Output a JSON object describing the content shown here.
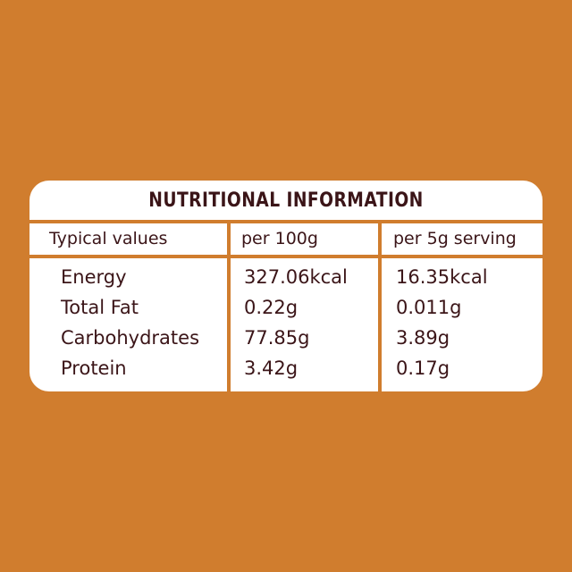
{
  "title": "NUTRITIONAL INFORMATION",
  "headers": [
    "Typical values",
    "per 100g",
    "per 5g serving"
  ],
  "rows": [
    {
      "name": "Energy",
      "per100": "327.06kcal",
      "serving": "16.35kcal"
    },
    {
      "name": "Total Fat",
      "per100": "0.22g",
      "serving": "0.011g"
    },
    {
      "name": "Carbohydrates",
      "per100": "77.85g",
      "serving": "3.89g"
    },
    {
      "name": "Protein",
      "per100": "3.42g",
      "serving": "0.17g"
    }
  ],
  "colors": {
    "background": "#D07D2E",
    "text": "#3b1518",
    "panel": "#ffffff"
  }
}
